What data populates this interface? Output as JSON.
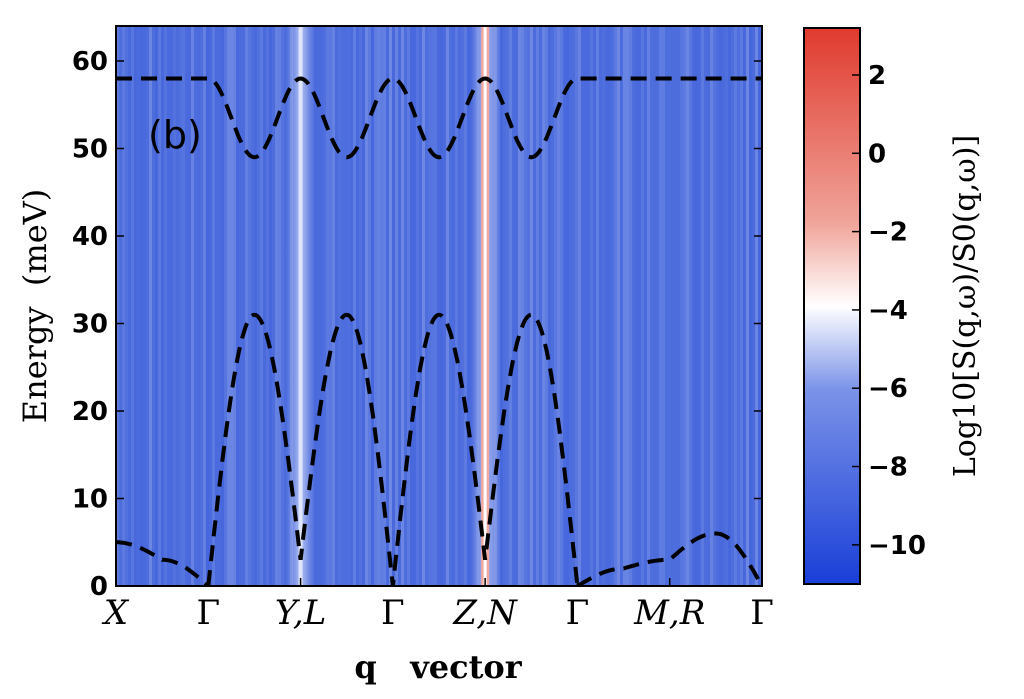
{
  "chart_data": {
    "type": "heatmap",
    "panel_label": "(b)",
    "xlabel": "q   vector",
    "ylabel": "Energy  (meV)",
    "ylim": [
      0,
      64
    ],
    "x_points": [
      "X",
      "Γ",
      "Y,L",
      "Γ",
      "Z,N",
      "Γ",
      "M,R",
      "Γ"
    ],
    "y_ticks": [
      0,
      10,
      20,
      30,
      40,
      50,
      60
    ],
    "colorbar": {
      "label": "Log10[S(q,ω)/S0(q,ω)]",
      "range": [
        -11,
        3.2
      ],
      "ticks": [
        -10,
        -8,
        -6,
        -4,
        -2,
        0,
        2
      ],
      "colors": {
        "low": "#1a3fd8",
        "mid": "#ffffff",
        "high": "#e03a2e"
      }
    },
    "heatmap_background_level": -8,
    "dispersion_lines": [
      {
        "x": [
          0.0,
          0.5,
          1.0
        ],
        "y": [
          5,
          3,
          0
        ]
      },
      {
        "x": [
          1.0,
          1.5,
          2.0,
          2.5,
          3.0,
          3.5,
          4.0,
          4.5,
          5.0
        ],
        "y": [
          0,
          31,
          3,
          31,
          0,
          31,
          3,
          31,
          0
        ]
      },
      {
        "x": [
          5.0,
          5.5,
          6.0,
          6.5,
          7.0
        ],
        "y": [
          0,
          2,
          3,
          6,
          0
        ]
      },
      {
        "x": [
          0.0,
          1.0,
          1.5,
          2.0,
          2.5,
          3.0,
          3.5,
          4.0,
          4.5,
          5.0,
          6.0,
          7.0
        ],
        "y": [
          58,
          58,
          49,
          58,
          49,
          58,
          49,
          58,
          49,
          58,
          58,
          58
        ]
      }
    ],
    "bright_streaks": [
      {
        "x": 2.0,
        "level": -6
      },
      {
        "x": 4.0,
        "level": 2
      }
    ]
  }
}
